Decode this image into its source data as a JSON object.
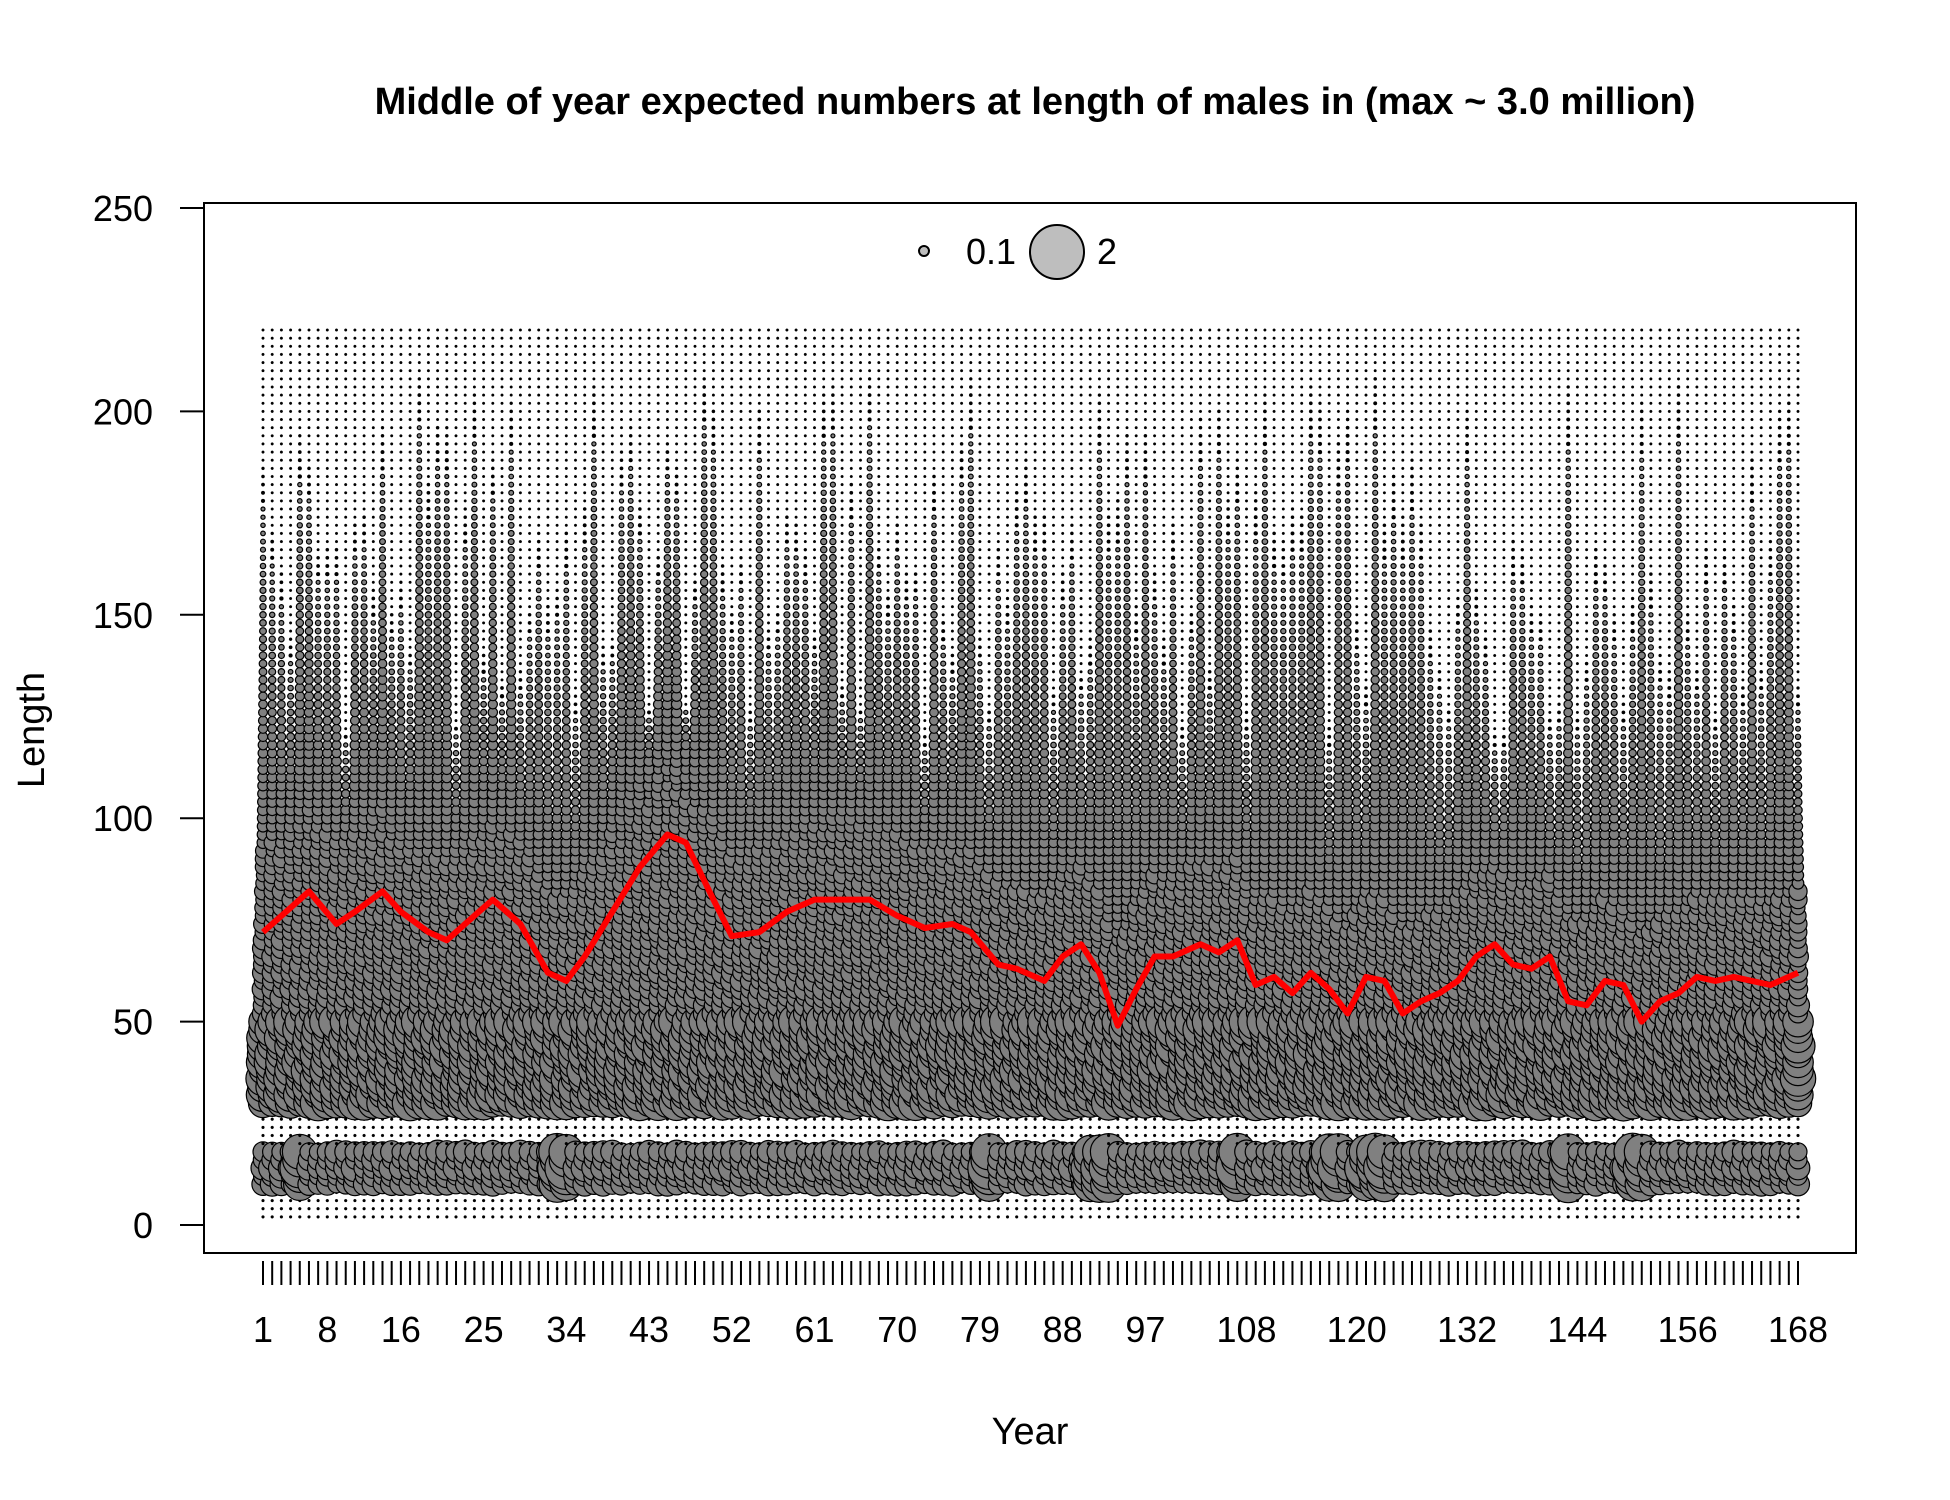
{
  "chart_data": {
    "type": "scatter",
    "title": "Middle of year expected numbers at length of males in (max ~ 3.0 million)",
    "xlabel": "Year",
    "ylabel": "Length",
    "xlim": [
      1,
      168
    ],
    "ylim": [
      0,
      250
    ],
    "yticks": [
      0,
      50,
      100,
      150,
      200,
      250
    ],
    "xtick_labels": [
      "1",
      "8",
      "16",
      "25",
      "34",
      "43",
      "52",
      "61",
      "70",
      "79",
      "88",
      "97",
      "108",
      "120",
      "132",
      "144",
      "156",
      "168"
    ],
    "legend": {
      "position": "top-center",
      "entries": [
        {
          "label": "0.1",
          "value": 0.1
        },
        {
          "label": "2",
          "value": 2
        }
      ]
    },
    "bubble_color": "#808080",
    "legend_fill": "#bebebe",
    "mean_line_color": "#ff0000",
    "mean_length_series": {
      "x": [
        1,
        4,
        6,
        9,
        11,
        14,
        16,
        19,
        21,
        24,
        26,
        29,
        32,
        34,
        36,
        39,
        42,
        45,
        47,
        50,
        52,
        55,
        58,
        61,
        64,
        67,
        70,
        73,
        76,
        78,
        81,
        83,
        86,
        88,
        90,
        92,
        94,
        96,
        98,
        100,
        103,
        105,
        107,
        109,
        111,
        113,
        115,
        117,
        119,
        121,
        123,
        125,
        127,
        129,
        131,
        133,
        135,
        137,
        139,
        141,
        143,
        145,
        147,
        149,
        151,
        153,
        155,
        157,
        159,
        161,
        163,
        165,
        168
      ],
      "y": [
        72,
        78,
        82,
        74,
        77,
        82,
        77,
        72,
        70,
        76,
        80,
        74,
        62,
        60,
        66,
        77,
        88,
        96,
        94,
        80,
        71,
        72,
        77,
        80,
        80,
        80,
        76,
        73,
        74,
        72,
        64,
        63,
        60,
        66,
        69,
        62,
        49,
        58,
        66,
        66,
        69,
        67,
        70,
        59,
        61,
        57,
        62,
        58,
        52,
        61,
        60,
        52,
        55,
        57,
        60,
        66,
        69,
        64,
        63,
        66,
        55,
        54,
        60,
        59,
        50,
        55,
        57,
        61,
        60,
        61,
        60,
        59,
        62
      ]
    },
    "length_bins": {
      "min": 2,
      "max": 220,
      "step": 2
    },
    "bubble_structure": {
      "recruit_length": 15,
      "gap_lengths": [
        20,
        28
      ],
      "main_mode_range": [
        30,
        50
      ]
    }
  }
}
